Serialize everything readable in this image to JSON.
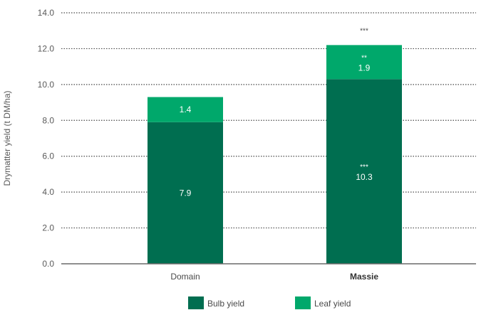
{
  "chart_data": {
    "type": "bar",
    "stacked": true,
    "categories": [
      "Domain",
      "Massie"
    ],
    "highlight_category": "Massie",
    "ylabel": "Drymatter yield (t DM/ha)",
    "ylim": [
      0,
      14
    ],
    "yticks": [
      "0.0",
      "2.0",
      "4.0",
      "6.0",
      "8.0",
      "10.0",
      "12.0",
      "14.0"
    ],
    "grid": "horizontal-dotted",
    "legend_position": "bottom-center",
    "series": [
      {
        "name": "Bulb yield",
        "color": "#006e50",
        "values": [
          7.9,
          10.3
        ],
        "labels": [
          "7.9",
          "10.3"
        ],
        "significance": [
          "",
          "***"
        ]
      },
      {
        "name": "Leaf yield",
        "color": "#00a86b",
        "values": [
          1.4,
          1.9
        ],
        "labels": [
          "1.4",
          "1.9"
        ],
        "significance": [
          "",
          "**"
        ]
      }
    ],
    "total_significance": [
      "",
      "***"
    ]
  }
}
